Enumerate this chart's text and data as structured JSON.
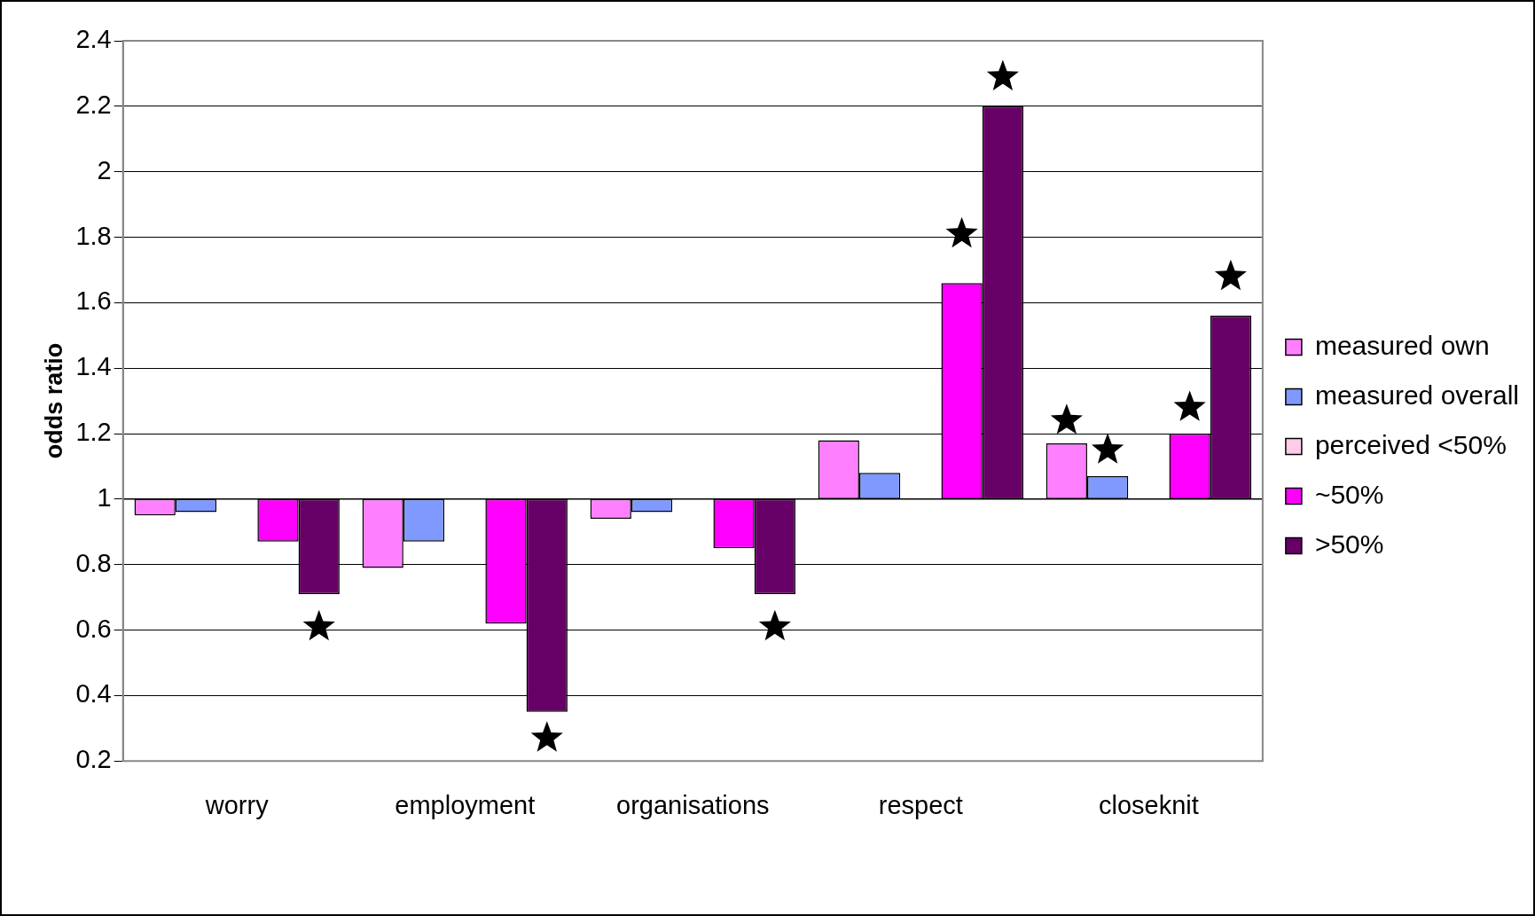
{
  "chart_data": {
    "type": "bar",
    "ylabel": "odds ratio",
    "categories": [
      "worry",
      "employment",
      "organisations",
      "respect",
      "closeknit"
    ],
    "series": [
      {
        "name": "measured own",
        "color": "#ff80ff",
        "base": [
          1,
          1,
          1,
          1,
          1
        ],
        "values": [
          -0.05,
          -0.21,
          -0.06,
          0.18,
          0.17
        ]
      },
      {
        "name": "measured overall",
        "color": "#8099ff",
        "base": [
          1,
          1,
          1,
          1,
          1
        ],
        "values": [
          -0.04,
          -0.13,
          -0.04,
          0.08,
          0.07
        ]
      },
      {
        "name": "perceived <50%",
        "color": "#ffcce6",
        "values": [
          null,
          null,
          null,
          null,
          null
        ]
      },
      {
        "name": "~50%",
        "color": "#ff00ff",
        "base": [
          1,
          1,
          1,
          1,
          1
        ],
        "values": [
          -0.13,
          -0.38,
          -0.15,
          0.66,
          0.2
        ]
      },
      {
        "name": ">50%",
        "color": "#660066",
        "base": [
          1,
          1,
          1,
          1,
          1
        ],
        "values": [
          -0.29,
          -0.65,
          -0.29,
          1.2,
          0.56
        ]
      },
      {
        "type": "scatter",
        "marker": "star",
        "color": "#000000",
        "values": [
          null,
          null,
          null,
          null,
          1.24
        ]
      },
      {
        "type": "scatter",
        "marker": "star",
        "color": "#000000",
        "values": [
          null,
          null,
          null,
          null,
          1.15
        ]
      },
      {
        "type": "scatter",
        "marker": "star",
        "color": "#000000",
        "values": [
          null,
          null,
          null,
          null,
          null
        ]
      },
      {
        "type": "scatter",
        "marker": "star",
        "color": "#000000",
        "values": [
          null,
          null,
          null,
          1.81,
          1.28
        ]
      },
      {
        "type": "scatter",
        "marker": "star",
        "color": "#000000",
        "values": [
          0.61,
          0.27,
          0.61,
          2.29,
          1.68
        ]
      }
    ],
    "ylim": [
      0.2,
      2.4
    ],
    "yticks": [
      0.2,
      0.4,
      0.6,
      0.8,
      1,
      1.2,
      1.4,
      1.6,
      1.8,
      2,
      2.2,
      2.4
    ],
    "ref_lines": [
      {
        "axis": "y",
        "value": 1
      }
    ],
    "grid": "y",
    "legend": "right"
  }
}
